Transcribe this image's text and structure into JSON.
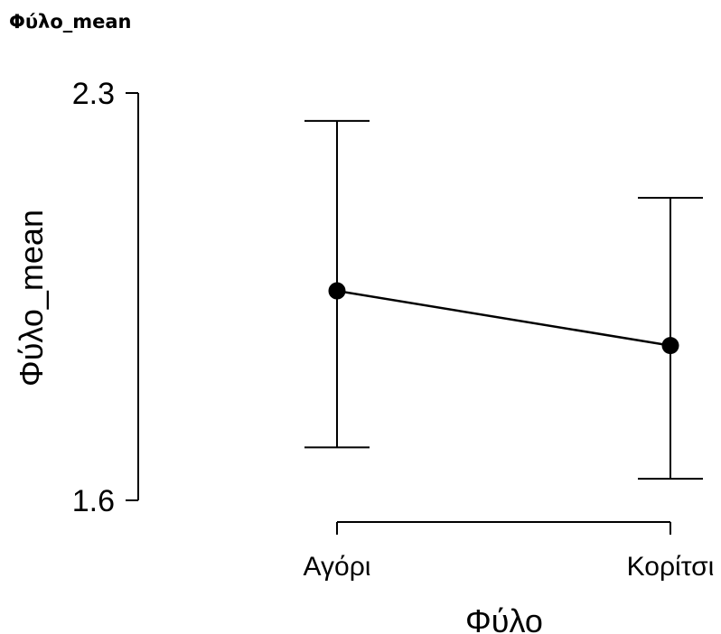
{
  "heading": "Φύλο_mean",
  "chart_data": {
    "type": "line",
    "title": "",
    "xlabel": "Φύλο",
    "ylabel": "Φύλο_mean",
    "categories": [
      "Αγόρι",
      "Κορίτσι"
    ],
    "series": [
      {
        "values": [
          1.96,
          1.866
        ],
        "ci_low": [
          1.691,
          1.637
        ],
        "ci_high": [
          2.252,
          2.12
        ]
      }
    ],
    "ylim": [
      1.6,
      2.3
    ],
    "yticks": [
      "1.6",
      "2.3"
    ],
    "grid": false,
    "legend": "none",
    "colors": {
      "line": "#000000",
      "marker": "#000000"
    }
  }
}
